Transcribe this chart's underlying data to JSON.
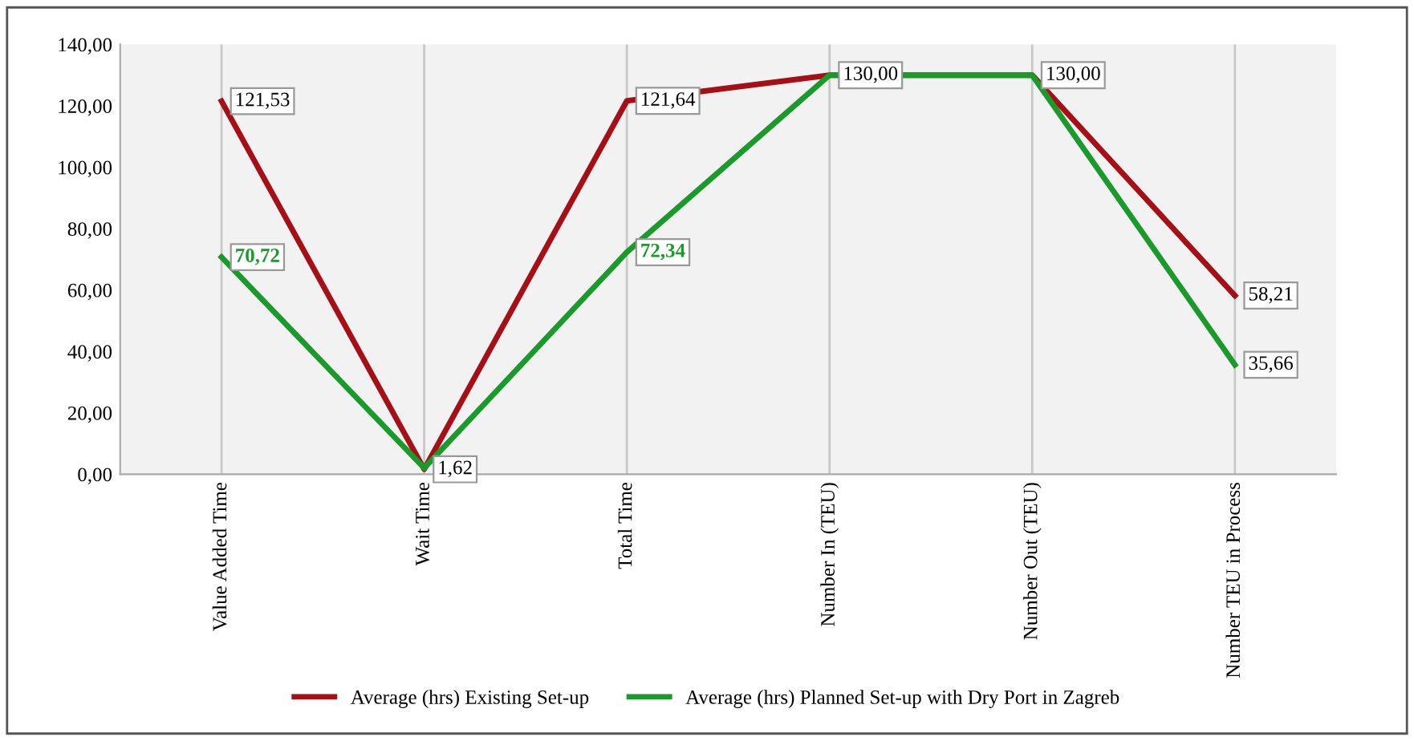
{
  "chart_data": {
    "type": "line",
    "categories": [
      "Value Added Time",
      "Wait Time",
      "Total Time",
      "Number In (TEU)",
      "Number Out (TEU)",
      "Number TEU in Process"
    ],
    "series": [
      {
        "name": "Average (hrs) Existing Set-up",
        "color": "#a50f15",
        "values": [
          121.53,
          1.62,
          121.64,
          130.0,
          130.0,
          58.21
        ],
        "value_labels": [
          "121,53",
          "1,62",
          "121,64",
          "130,00",
          "130,00",
          "58,21"
        ]
      },
      {
        "name": "Average (hrs) Planned Set-up with Dry Port in Zagreb",
        "color": "#1a9a2a",
        "values": [
          70.72,
          2,
          72.34,
          130.0,
          130.0,
          35.66
        ],
        "value_labels": [
          "70,72",
          null,
          "72,34",
          null,
          null,
          "35,66"
        ]
      }
    ],
    "ylim": [
      0,
      140
    ],
    "yticks": [
      {
        "value": 0,
        "label": "0,00"
      },
      {
        "value": 20,
        "label": "20,00"
      },
      {
        "value": 40,
        "label": "40,00"
      },
      {
        "value": 60,
        "label": "60,00"
      },
      {
        "value": 80,
        "label": "80,00"
      },
      {
        "value": 100,
        "label": "100,00"
      },
      {
        "value": 120,
        "label": "120,00"
      },
      {
        "value": 140,
        "label": "140,00"
      }
    ],
    "grid": "x",
    "legend": "bottom",
    "marker": "none",
    "line_style": "solid"
  }
}
